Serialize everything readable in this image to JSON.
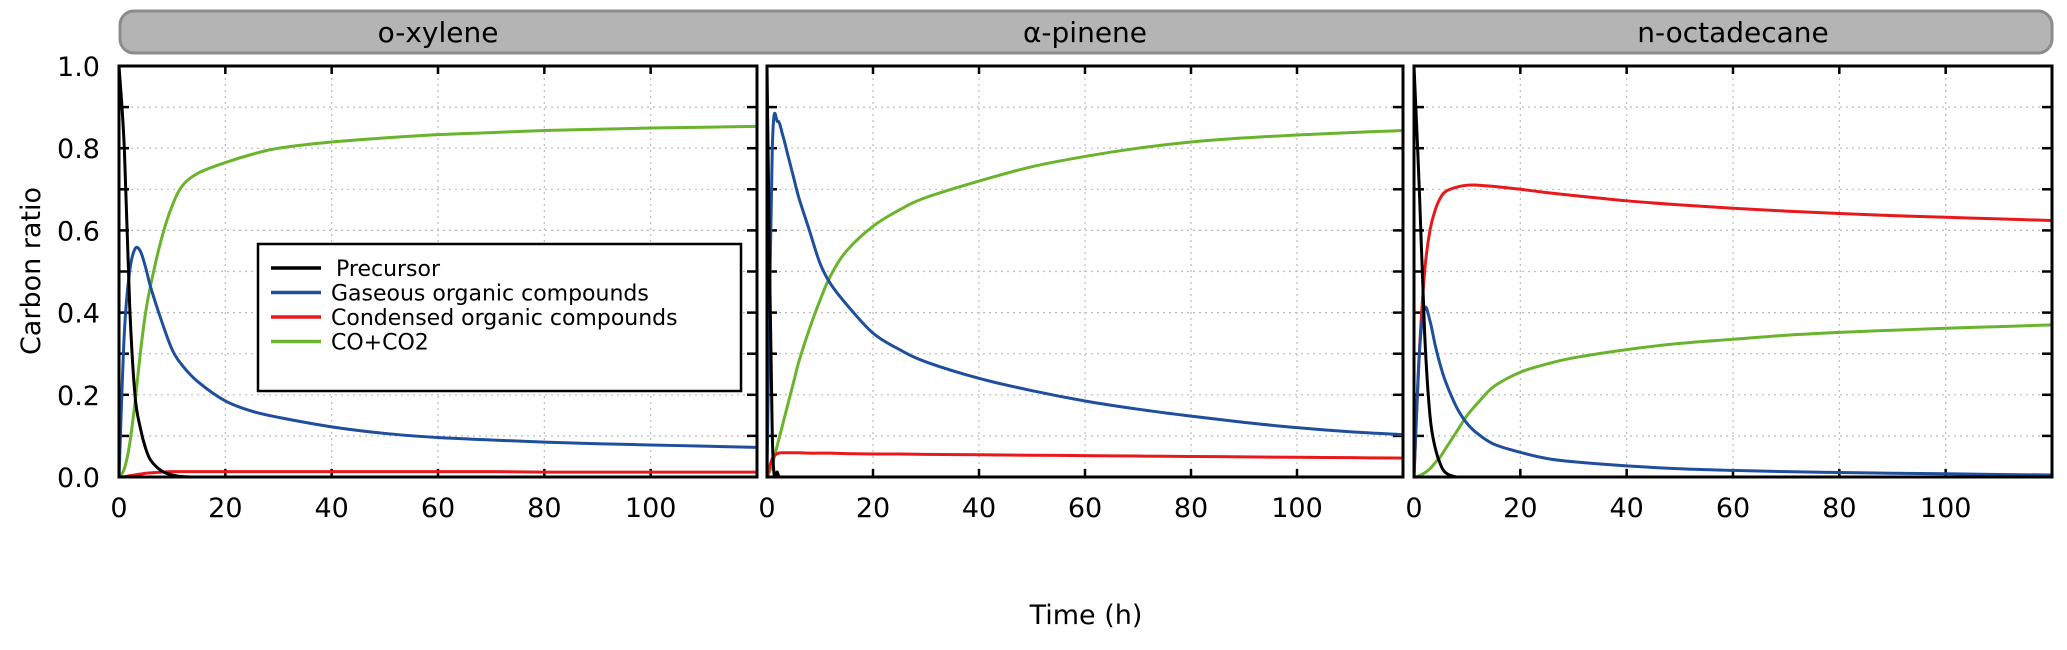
{
  "chart_data": {
    "type": "line",
    "ylabel": "Carbon ratio",
    "xlabel": "Time (h)",
    "xlim": [
      0,
      120
    ],
    "ylim": [
      0,
      1
    ],
    "xticks": [
      0,
      20,
      40,
      60,
      80,
      100
    ],
    "yticks": [
      0.0,
      0.2,
      0.4,
      0.6,
      0.8,
      1.0
    ],
    "ytick_labels": [
      "0.0",
      "0.2",
      "0.4",
      "0.6",
      "0.8",
      "1.0"
    ],
    "xtick_labels": [
      "0",
      "20",
      "40",
      "60",
      "80",
      "100"
    ],
    "grid": true,
    "colors": {
      "Precursor": "#000000",
      "Gaseous organic compounds": "#1f4e9c",
      "Condensed organic compounds": "#e8191c",
      "CO+CO2": "#6ab42d"
    },
    "legend": {
      "placement": "center-left of first panel",
      "entries": [
        "Precursor",
        "Gaseous organic compounds",
        "Condensed organic compounds",
        "CO+CO2"
      ]
    },
    "x": [
      0,
      1,
      2,
      3,
      4,
      5,
      6,
      8,
      10,
      12,
      15,
      20,
      25,
      30,
      40,
      50,
      60,
      70,
      80,
      90,
      100,
      110,
      120
    ],
    "panels": [
      {
        "title": "o-xylene",
        "series": [
          {
            "name": "Precursor",
            "values": [
              1,
              0.8,
              0.42,
              0.2,
              0.12,
              0.07,
              0.04,
              0.015,
              0.005,
              0.001,
              0,
              0,
              0,
              0,
              0,
              0,
              0,
              0,
              0,
              0,
              0,
              0,
              0
            ]
          },
          {
            "name": "Gaseous organic compounds",
            "values": [
              0,
              0.35,
              0.5,
              0.555,
              0.55,
              0.51,
              0.46,
              0.38,
              0.31,
              0.27,
              0.23,
              0.185,
              0.16,
              0.145,
              0.122,
              0.106,
              0.096,
              0.09,
              0.085,
              0.081,
              0.078,
              0.075,
              0.072
            ]
          },
          {
            "name": "Condensed organic compounds",
            "values": [
              0,
              0.001,
              0.003,
              0.005,
              0.007,
              0.009,
              0.01,
              0.012,
              0.013,
              0.013,
              0.013,
              0.013,
              0.013,
              0.013,
              0.013,
              0.013,
              0.013,
              0.013,
              0.012,
              0.012,
              0.012,
              0.012,
              0.012
            ]
          },
          {
            "name": "CO+CO2",
            "values": [
              0,
              0.02,
              0.08,
              0.18,
              0.3,
              0.4,
              0.47,
              0.58,
              0.66,
              0.71,
              0.74,
              0.765,
              0.785,
              0.8,
              0.815,
              0.825,
              0.833,
              0.838,
              0.843,
              0.846,
              0.849,
              0.851,
              0.853
            ]
          }
        ]
      },
      {
        "title": "α-pinene",
        "series": [
          {
            "name": "Precursor",
            "values": [
              1,
              0.1,
              0.01,
              0,
              0,
              0,
              0,
              0,
              0,
              0,
              0,
              0,
              0,
              0,
              0,
              0,
              0,
              0,
              0,
              0,
              0,
              0,
              0
            ]
          },
          {
            "name": "Gaseous organic compounds",
            "values": [
              0,
              0.8,
              0.865,
              0.83,
              0.78,
              0.73,
              0.68,
              0.6,
              0.52,
              0.47,
              0.42,
              0.35,
              0.31,
              0.28,
              0.24,
              0.21,
              0.185,
              0.165,
              0.148,
              0.133,
              0.12,
              0.11,
              0.103
            ]
          },
          {
            "name": "Condensed organic compounds",
            "values": [
              0,
              0.045,
              0.057,
              0.059,
              0.059,
              0.059,
              0.059,
              0.058,
              0.058,
              0.058,
              0.057,
              0.056,
              0.056,
              0.055,
              0.054,
              0.053,
              0.052,
              0.051,
              0.05,
              0.049,
              0.048,
              0.047,
              0.046
            ]
          },
          {
            "name": "CO+CO2",
            "values": [
              0,
              0.03,
              0.08,
              0.13,
              0.18,
              0.23,
              0.28,
              0.36,
              0.43,
              0.49,
              0.55,
              0.61,
              0.65,
              0.68,
              0.72,
              0.755,
              0.78,
              0.8,
              0.815,
              0.825,
              0.832,
              0.838,
              0.843
            ]
          }
        ]
      },
      {
        "title": "n-octadecane",
        "series": [
          {
            "name": "Precursor",
            "values": [
              1,
              0.7,
              0.35,
              0.15,
              0.07,
              0.03,
              0.01,
              0,
              0,
              0,
              0,
              0,
              0,
              0,
              0,
              0,
              0,
              0,
              0,
              0,
              0,
              0,
              0
            ]
          },
          {
            "name": "Gaseous organic compounds",
            "values": [
              0,
              0.3,
              0.41,
              0.38,
              0.32,
              0.27,
              0.23,
              0.17,
              0.13,
              0.105,
              0.08,
              0.06,
              0.045,
              0.037,
              0.027,
              0.02,
              0.016,
              0.013,
              0.011,
              0.009,
              0.008,
              0.006,
              0.005
            ]
          },
          {
            "name": "Condensed organic compounds",
            "values": [
              0,
              0.3,
              0.5,
              0.6,
              0.65,
              0.68,
              0.695,
              0.705,
              0.71,
              0.71,
              0.707,
              0.7,
              0.692,
              0.685,
              0.672,
              0.662,
              0.654,
              0.647,
              0.641,
              0.636,
              0.632,
              0.628,
              0.624
            ]
          },
          {
            "name": "CO+CO2",
            "values": [
              0,
              0.003,
              0.01,
              0.02,
              0.035,
              0.05,
              0.07,
              0.11,
              0.15,
              0.18,
              0.22,
              0.255,
              0.275,
              0.29,
              0.31,
              0.325,
              0.335,
              0.345,
              0.352,
              0.357,
              0.362,
              0.366,
              0.37
            ]
          }
        ]
      }
    ]
  }
}
